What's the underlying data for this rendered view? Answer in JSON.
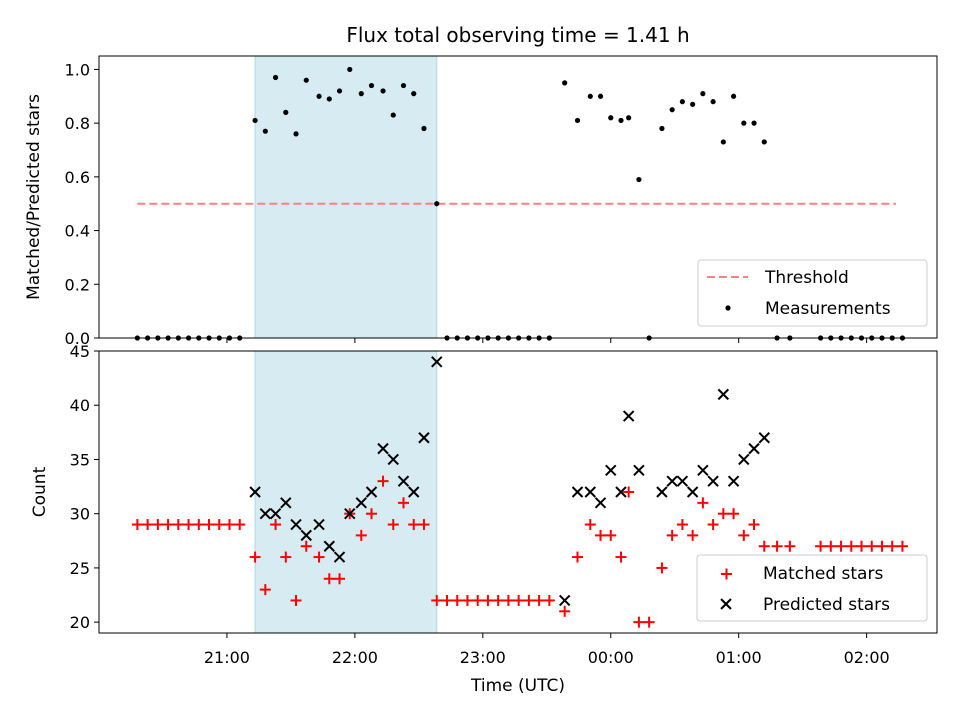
{
  "chart_data": [
    {
      "type": "scatter",
      "title": "Flux total observing time = 1.41 h",
      "ylabel": "Matched/Predicted stars",
      "xlabel": "",
      "ylim": [
        0,
        1.05
      ],
      "yticks": [
        0.0,
        0.2,
        0.4,
        0.6,
        0.8,
        1.0
      ],
      "ytick_labels": [
        "0.0",
        "0.2",
        "0.4",
        "0.6",
        "0.8",
        "1.0"
      ],
      "xlim_hours": [
        20.0,
        26.55
      ],
      "shaded_span_hours": [
        21.22,
        22.64
      ],
      "shaded_color": "#add8e6",
      "grid": false,
      "legend_position": "lower right",
      "threshold": {
        "name": "Threshold",
        "value": 0.5,
        "x_range_hours": [
          20.3,
          26.23
        ],
        "color": "#ff8080",
        "style": "dashed"
      },
      "series": [
        {
          "name": "Measurements",
          "color": "#000000",
          "x_hours": [
            20.3,
            20.38,
            20.46,
            20.54,
            20.62,
            20.7,
            20.78,
            20.86,
            20.94,
            21.02,
            21.1,
            21.22,
            21.3,
            21.38,
            21.46,
            21.54,
            21.62,
            21.72,
            21.8,
            21.88,
            21.96,
            22.05,
            22.13,
            22.22,
            22.3,
            22.38,
            22.46,
            22.54,
            22.64,
            22.72,
            22.8,
            22.88,
            22.96,
            23.04,
            23.12,
            23.2,
            23.28,
            23.36,
            23.44,
            23.52,
            23.64,
            23.74,
            23.84,
            23.92,
            24.0,
            24.08,
            24.14,
            24.22,
            24.3,
            24.4,
            24.48,
            24.56,
            24.64,
            24.72,
            24.8,
            24.88,
            24.96,
            25.04,
            25.12,
            25.2,
            25.3,
            25.4,
            25.64,
            25.72,
            25.8,
            25.88,
            25.96,
            26.04,
            26.12,
            26.2,
            26.28
          ],
          "y": [
            0,
            0,
            0,
            0,
            0,
            0,
            0,
            0,
            0,
            0,
            0,
            0.81,
            0.77,
            0.97,
            0.84,
            0.76,
            0.96,
            0.9,
            0.89,
            0.92,
            1.0,
            0.91,
            0.94,
            0.92,
            0.83,
            0.94,
            0.91,
            0.78,
            0.5,
            0,
            0,
            0,
            0,
            0,
            0,
            0,
            0,
            0,
            0,
            0,
            0.95,
            0.81,
            0.9,
            0.9,
            0.82,
            0.81,
            0.82,
            0.59,
            0,
            0.78,
            0.85,
            0.88,
            0.87,
            0.91,
            0.88,
            0.73,
            0.9,
            0.8,
            0.8,
            0.73,
            0,
            0,
            0,
            0,
            0,
            0,
            0,
            0,
            0,
            0,
            0
          ]
        }
      ]
    },
    {
      "type": "scatter",
      "title": "",
      "xlabel": "Time (UTC)",
      "ylabel": "Count",
      "ylim": [
        19,
        45
      ],
      "yticks": [
        20,
        25,
        30,
        35,
        40,
        45
      ],
      "ytick_labels": [
        "20",
        "25",
        "30",
        "35",
        "40",
        "45"
      ],
      "xticks_hours": [
        21,
        22,
        23,
        24,
        25,
        26
      ],
      "xtick_labels": [
        "21:00",
        "22:00",
        "23:00",
        "00:00",
        "01:00",
        "02:00"
      ],
      "xlim_hours": [
        20.0,
        26.55
      ],
      "shaded_span_hours": [
        21.22,
        22.64
      ],
      "shaded_color": "#add8e6",
      "grid": false,
      "legend_position": "lower right",
      "series": [
        {
          "name": "Matched stars",
          "marker": "+",
          "color": "#ff0000",
          "x_hours": [
            20.3,
            20.38,
            20.46,
            20.54,
            20.62,
            20.7,
            20.78,
            20.86,
            20.94,
            21.02,
            21.1,
            21.22,
            21.3,
            21.38,
            21.46,
            21.54,
            21.62,
            21.72,
            21.8,
            21.88,
            21.96,
            22.05,
            22.13,
            22.22,
            22.3,
            22.38,
            22.46,
            22.54,
            22.64,
            22.72,
            22.8,
            22.88,
            22.96,
            23.04,
            23.12,
            23.2,
            23.28,
            23.36,
            23.44,
            23.52,
            23.64,
            23.74,
            23.84,
            23.92,
            24.0,
            24.08,
            24.14,
            24.22,
            24.3,
            24.4,
            24.48,
            24.56,
            24.64,
            24.72,
            24.8,
            24.88,
            24.96,
            25.04,
            25.12,
            25.2,
            25.3,
            25.4,
            25.64,
            25.72,
            25.8,
            25.88,
            25.96,
            26.04,
            26.12,
            26.2,
            26.28
          ],
          "y": [
            29,
            29,
            29,
            29,
            29,
            29,
            29,
            29,
            29,
            29,
            29,
            26,
            23,
            29,
            26,
            22,
            27,
            26,
            24,
            24,
            30,
            28,
            30,
            33,
            29,
            31,
            29,
            29,
            22,
            22,
            22,
            22,
            22,
            22,
            22,
            22,
            22,
            22,
            22,
            22,
            21,
            26,
            29,
            28,
            28,
            26,
            32,
            20,
            20,
            25,
            28,
            29,
            28,
            31,
            29,
            30,
            30,
            28,
            29,
            27,
            27,
            27,
            27,
            27,
            27,
            27,
            27,
            27,
            27,
            27,
            27
          ]
        },
        {
          "name": "Predicted stars",
          "marker": "x",
          "color": "#000000",
          "x_hours": [
            21.22,
            21.3,
            21.38,
            21.46,
            21.54,
            21.62,
            21.72,
            21.8,
            21.88,
            21.96,
            22.05,
            22.13,
            22.22,
            22.3,
            22.38,
            22.46,
            22.54,
            22.64,
            23.64,
            23.74,
            23.84,
            23.92,
            24.0,
            24.08,
            24.14,
            24.22,
            24.4,
            24.48,
            24.56,
            24.64,
            24.72,
            24.8,
            24.88,
            24.96,
            25.04,
            25.12,
            25.2
          ],
          "y": [
            32,
            30,
            30,
            31,
            29,
            28,
            29,
            27,
            26,
            30,
            31,
            32,
            36,
            35,
            33,
            32,
            37,
            44,
            22,
            32,
            32,
            31,
            34,
            32,
            39,
            34,
            32,
            33,
            33,
            32,
            34,
            33,
            41,
            33,
            35,
            36,
            37
          ]
        }
      ]
    }
  ]
}
